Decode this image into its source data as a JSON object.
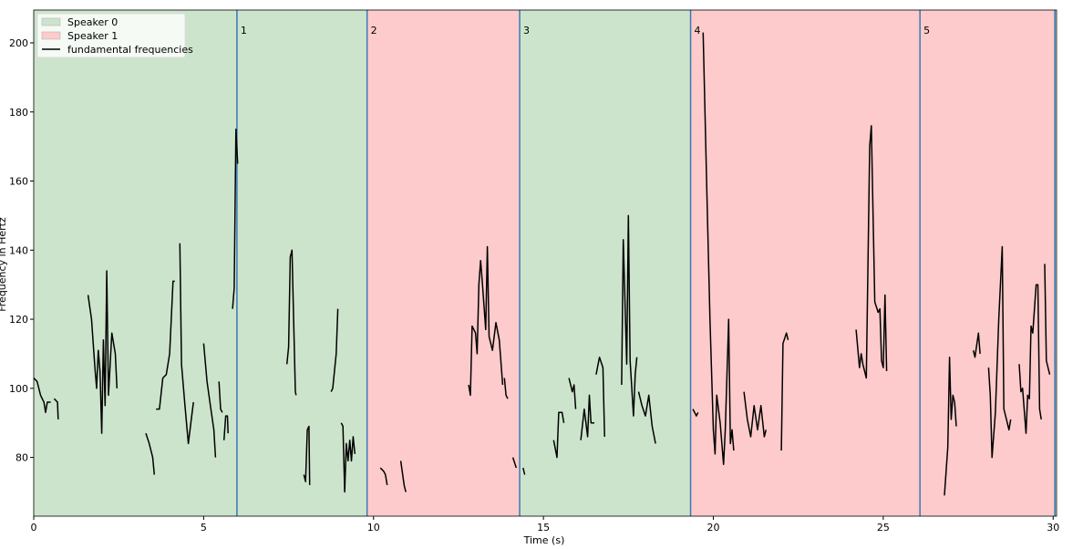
{
  "chart_data": {
    "type": "line",
    "x_label": "Time (s)",
    "y_label": "Frequency in Hertz",
    "xlim": [
      0,
      30.1
    ],
    "ylim": [
      63,
      209.5
    ],
    "xticks": [
      0,
      5,
      10,
      15,
      20,
      25,
      30
    ],
    "yticks": [
      80,
      100,
      120,
      140,
      160,
      180,
      200
    ],
    "speakers": [
      {
        "name": "Speaker 0",
        "color": "#cde4cc"
      },
      {
        "name": "Speaker 1",
        "color": "#fdcbcb"
      }
    ],
    "boundaries": [
      5.98,
      9.81,
      14.3,
      19.33,
      26.08,
      30.05
    ],
    "boundary_labels": [
      "1",
      "2",
      "3",
      "4",
      "5",
      null
    ],
    "boundary_color": "#3a78b5",
    "segment_speakers": [
      0,
      0,
      1,
      0,
      1,
      1,
      0
    ],
    "legend": "upper left",
    "x": [
      0,
      0.1,
      0.2,
      0.3,
      0.35,
      0.4,
      0.5,
      null,
      0.6,
      0.7,
      0.72,
      null,
      1.6,
      1.7,
      1.8,
      1.85,
      1.9,
      1.95,
      2.0,
      2.05,
      2.1,
      2.15,
      2.2,
      2.3,
      2.4,
      2.45,
      null,
      3.3,
      3.4,
      3.5,
      3.55,
      null,
      3.6,
      3.7,
      3.8,
      3.9,
      4.0,
      4.1,
      4.15,
      null,
      4.3,
      4.35,
      4.45,
      4.55,
      4.65,
      4.7,
      null,
      5.0,
      5.1,
      5.2,
      5.3,
      5.35,
      null,
      5.45,
      5.5,
      5.55,
      null,
      5.6,
      5.65,
      5.7,
      5.72,
      null,
      5.85,
      5.9,
      5.95,
      6.0,
      null,
      7.45,
      7.5,
      7.55,
      7.6,
      7.7,
      7.72,
      null,
      7.95,
      8.0,
      8.05,
      8.1,
      8.12,
      null,
      8.75,
      8.8,
      8.9,
      8.95,
      null,
      9.05,
      9.1,
      9.15,
      9.2,
      9.25,
      9.3,
      9.35,
      9.4,
      9.45,
      null,
      10.2,
      10.3,
      10.35,
      10.4,
      null,
      10.8,
      10.9,
      10.95,
      null,
      12.8,
      12.85,
      12.9,
      13.0,
      13.05,
      13.1,
      13.15,
      13.2,
      13.3,
      13.35,
      13.4,
      13.5,
      13.6,
      13.7,
      13.8,
      null,
      13.85,
      13.9,
      13.95,
      null,
      14.1,
      14.2,
      null,
      14.4,
      14.45,
      null,
      15.3,
      15.4,
      15.45,
      15.55,
      15.6,
      null,
      15.75,
      15.85,
      15.9,
      15.95,
      null,
      16.1,
      16.2,
      16.3,
      16.35,
      16.4,
      16.5,
      null,
      16.55,
      16.65,
      16.75,
      16.8,
      null,
      17.3,
      17.35,
      17.45,
      17.5,
      17.55,
      17.65,
      17.7,
      17.75,
      null,
      17.8,
      17.9,
      18.0,
      18.1,
      18.2,
      18.3,
      null,
      19.4,
      19.5,
      19.55,
      null,
      19.7,
      19.8,
      19.9,
      20.0,
      20.05,
      20.1,
      20.2,
      20.3,
      20.35,
      20.45,
      20.5,
      20.55,
      20.6,
      null,
      20.9,
      21.0,
      21.1,
      21.2,
      21.3,
      21.4,
      21.5,
      21.55,
      null,
      22.0,
      22.05,
      22.15,
      22.2,
      null,
      24.2,
      24.3,
      24.35,
      24.4,
      24.5,
      24.6,
      24.65,
      24.75,
      24.85,
      24.9,
      24.95,
      25.0,
      25.05,
      25.1,
      null,
      26.8,
      26.9,
      26.95,
      27.0,
      27.05,
      27.1,
      27.15,
      null,
      27.65,
      27.7,
      27.8,
      27.85,
      null,
      28.1,
      28.15,
      28.2,
      28.3,
      28.4,
      28.5,
      28.55,
      28.6,
      28.7,
      28.75,
      null,
      29.0,
      29.05,
      29.1,
      29.2,
      29.25,
      29.3,
      29.35,
      29.4,
      29.5,
      29.55,
      29.6,
      29.65,
      null,
      29.75,
      29.8,
      29.9
    ],
    "series": [
      {
        "name": "fundamental frequencies",
        "color": "#000000",
        "values": [
          103,
          102,
          98,
          96,
          93,
          96,
          96,
          null,
          97,
          96,
          91,
          null,
          127,
          120,
          106,
          100,
          111,
          105,
          87,
          114,
          95,
          134,
          98,
          116,
          110,
          100,
          null,
          87,
          84,
          80,
          75,
          null,
          94,
          94,
          103,
          104,
          110,
          131,
          131,
          null,
          142,
          107,
          95,
          84,
          92,
          96,
          null,
          113,
          102,
          95,
          88,
          80,
          null,
          102,
          94,
          93,
          null,
          85,
          92,
          92,
          87,
          null,
          123,
          129,
          175,
          165,
          null,
          107,
          112,
          138,
          140,
          99,
          98,
          null,
          75,
          73,
          88,
          89,
          72,
          null,
          99,
          100,
          110,
          123,
          null,
          90,
          89,
          70,
          84,
          79,
          85,
          79,
          86,
          81,
          null,
          77,
          76,
          75,
          72,
          null,
          79,
          72,
          70,
          null,
          101,
          98,
          118,
          116,
          110,
          130,
          137,
          131,
          117,
          141,
          115,
          111,
          119,
          114,
          101,
          null,
          103,
          98,
          97,
          null,
          80,
          77,
          null,
          77,
          75,
          null,
          85,
          80,
          93,
          93,
          90,
          null,
          103,
          99,
          101,
          94,
          null,
          85,
          94,
          86,
          98,
          90,
          90,
          null,
          104,
          109,
          106,
          86,
          null,
          101,
          143,
          107,
          150,
          108,
          92,
          104,
          109,
          null,
          99,
          95,
          92,
          98,
          89,
          84,
          null,
          94,
          92,
          93,
          null,
          203,
          160,
          120,
          88,
          81,
          98,
          90,
          78,
          88,
          120,
          84,
          88,
          82,
          null,
          99,
          91,
          86,
          95,
          88,
          95,
          86,
          88,
          null,
          82,
          113,
          116,
          114,
          null,
          117,
          106,
          110,
          107,
          103,
          170,
          176,
          125,
          122,
          123,
          108,
          106,
          127,
          105,
          null,
          69,
          83,
          109,
          91,
          98,
          96,
          89,
          null,
          111,
          109,
          116,
          110,
          null,
          106,
          98,
          80,
          93,
          120,
          141,
          94,
          92,
          88,
          91,
          null,
          107,
          99,
          100,
          87,
          98,
          97,
          118,
          116,
          130,
          130,
          94,
          91,
          null,
          136,
          108,
          104
        ]
      }
    ]
  }
}
